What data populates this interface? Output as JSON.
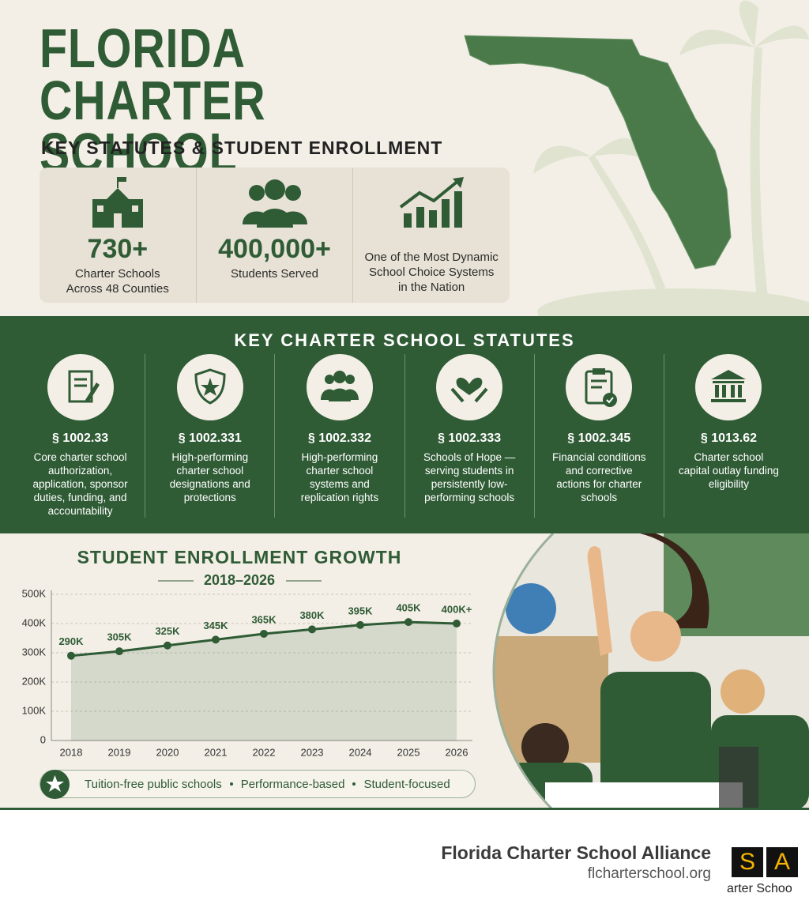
{
  "header": {
    "title": "FLORIDA CHARTER SCHOOL GROWTH",
    "subtitle": "KEY STATUTES & STUDENT ENROLLMENT"
  },
  "stats": [
    {
      "value": "730+",
      "label": "Charter Schools Across 48 Counties"
    },
    {
      "value": "400,000+",
      "label": "Students Served"
    },
    {
      "label": "One of the Most Dynamic School Choice Systems in the Nation"
    }
  ],
  "statutes": {
    "title": "KEY CHARTER SCHOOL STATUTES",
    "items": [
      {
        "section": "§ 1002.33",
        "description": "Core charter school authorization, application, sponsor duties, funding, and accountability"
      },
      {
        "section": "§ 1002.331",
        "description": "High-performing charter school designations and protections"
      },
      {
        "section": "§ 1002.332",
        "description": "High-performing charter school systems and replication rights"
      },
      {
        "section": "§ 1002.333",
        "description": "Schools of Hope — serving students in persistently low-performing schools"
      },
      {
        "section": "§ 1002.345",
        "description": "Financial conditions and corrective actions for charter schools"
      },
      {
        "section": "§ 1013.62",
        "description": "Charter school capital outlay funding eligibility"
      }
    ]
  },
  "chart_data": {
    "type": "area",
    "title": "STUDENT ENROLLMENT GROWTH",
    "subtitle": "2018–2026",
    "categories": [
      "2018",
      "2019",
      "2020",
      "2021",
      "2022",
      "2023",
      "2024",
      "2025",
      "2026"
    ],
    "values": [
      290000,
      305000,
      325000,
      345000,
      365000,
      380000,
      395000,
      405000,
      400000
    ],
    "value_labels": [
      "290K",
      "305K",
      "325K",
      "345K",
      "365K",
      "380K",
      "395K",
      "405K",
      "400K+"
    ],
    "color": "#2f5b35",
    "ylim": [
      0,
      500000
    ],
    "yticks": [
      0,
      {
        "value": 100000,
        "label": "100K"
      },
      {
        "value": 200000,
        "label": "200K"
      },
      {
        "value": 300000,
        "label": "300K"
      },
      {
        "value": 400000,
        "label": "400K"
      },
      {
        "value": 500000,
        "label": "500K"
      }
    ],
    "grid": true
  },
  "tagline": {
    "items": [
      "Tuition-free public schools",
      "Performance-based",
      "Student-focused"
    ]
  },
  "footer": {
    "organization": "Florida Charter School Alliance",
    "website": "flcharterschool.org",
    "logo": {
      "letters": [
        "S",
        "A"
      ],
      "text": "arter Schoo"
    }
  }
}
